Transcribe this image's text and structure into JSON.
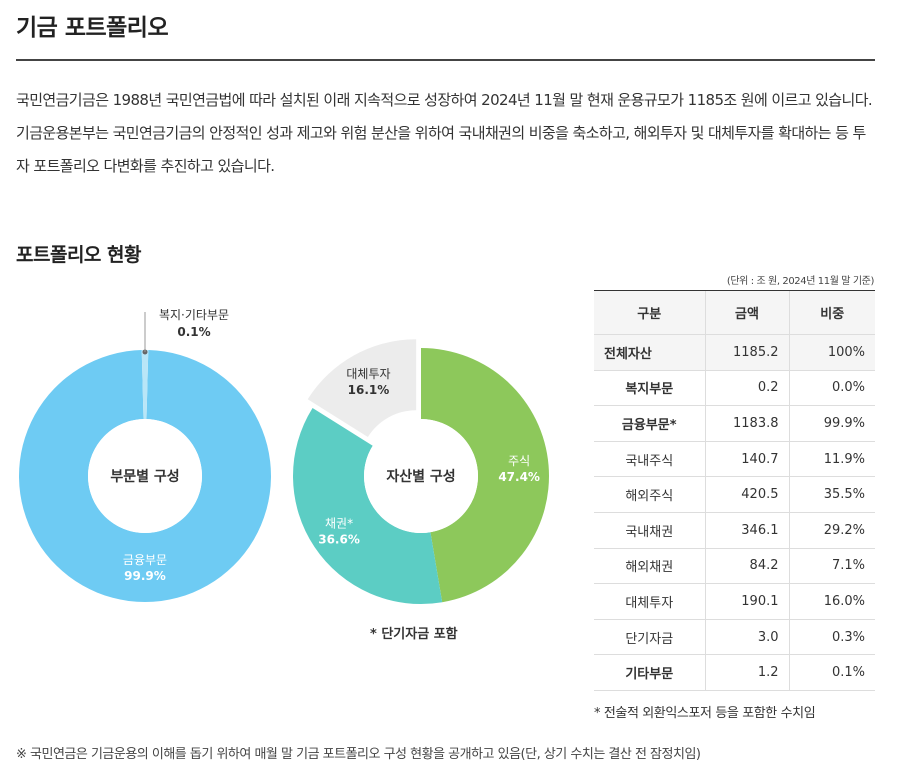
{
  "page_title": "기금 포트폴리오",
  "intro": "국민연금기금은 1988년 국민연금법에 따라 설치된 이래 지속적으로 성장하여 2024년 11월 말 현재 운용규모가 1185조 원에 이르고 있습니다. 기금운용본부는 국민연금기금의 안정적인 성과 제고와 위험 분산을 위하여 국내채권의 비중을 축소하고, 해외투자 및 대체투자를 확대하는 등 투자 포트폴리오 다변화를 추진하고 있습니다.",
  "section_title": "포트폴리오 현황",
  "unit_note": "(단위 : 조 원, 2024년 11월 말 기준)",
  "colors": {
    "finance": "#6ecbf3",
    "welfare": "#b9e6f7",
    "stocks": "#8dc85b",
    "bonds": "#5ccdc4",
    "alternative": "#ececec",
    "alternative_text": "#333333"
  },
  "chart_data": [
    {
      "type": "pie",
      "title": "부문별 구성",
      "slices": [
        {
          "label": "금융부문",
          "value": 99.9,
          "display": "99.9%",
          "color": "#6ecbf3",
          "text_color": "#ffffff"
        },
        {
          "label": "복지·기타부문",
          "value": 0.1,
          "display": "0.1%",
          "color": "#b9e6f7",
          "text_color": "#333333"
        }
      ]
    },
    {
      "type": "pie",
      "title": "자산별 구성",
      "slices": [
        {
          "label": "주식",
          "value": 47.4,
          "display": "47.4%",
          "color": "#8dc85b",
          "text_color": "#ffffff"
        },
        {
          "label": "채권*",
          "value": 36.6,
          "display": "36.6%",
          "color": "#5ccdc4",
          "text_color": "#ffffff"
        },
        {
          "label": "대체투자",
          "value": 16.1,
          "display": "16.1%",
          "color": "#ececec",
          "text_color": "#333333"
        }
      ]
    }
  ],
  "chart_note": "* 단기자금 포함",
  "table": {
    "headers": [
      "구분",
      "금액",
      "비중"
    ],
    "rows": [
      {
        "label": "전체자산",
        "amount": "1185.2",
        "share": "100%"
      },
      {
        "label": "복지부문",
        "amount": "0.2",
        "share": "0.0%"
      },
      {
        "label": "금융부문*",
        "amount": "1183.8",
        "share": "99.9%"
      },
      {
        "label": "국내주식",
        "amount": "140.7",
        "share": "11.9%"
      },
      {
        "label": "해외주식",
        "amount": "420.5",
        "share": "35.5%"
      },
      {
        "label": "국내채권",
        "amount": "346.1",
        "share": "29.2%"
      },
      {
        "label": "해외채권",
        "amount": "84.2",
        "share": "7.1%"
      },
      {
        "label": "대체투자",
        "amount": "190.1",
        "share": "16.0%"
      },
      {
        "label": "단기자금",
        "amount": "3.0",
        "share": "0.3%"
      },
      {
        "label": "기타부문",
        "amount": "1.2",
        "share": "0.1%"
      }
    ]
  },
  "table_note": "* 전술적 외환익스포저 등을 포함한 수치임",
  "footnote": "※  국민연금은 기금운용의 이해를 돕기 위하여 매월 말 기금 포트폴리오 구성 현황을 공개하고 있음(단, 상기 수치는 결산 전 잠정치임)"
}
